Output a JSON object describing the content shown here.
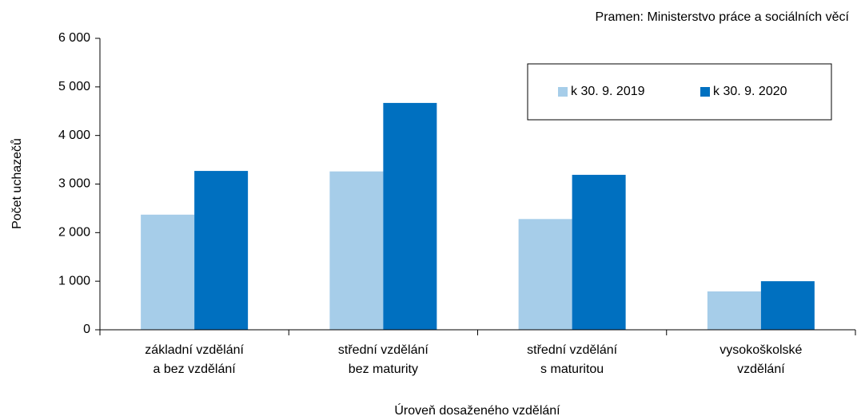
{
  "chart_data": {
    "type": "bar",
    "source": "Pramen: Ministerstvo práce a sociálních věcí",
    "x_label": "Úroveň dosaženého vzdělání",
    "y_label": "Počet uchazečů",
    "categories": [
      [
        "základní vzdělání",
        "a bez vzdělání"
      ],
      [
        "střední vzdělání",
        "bez maturity"
      ],
      [
        "střední vzdělání",
        "s maturitou"
      ],
      [
        "vysokoškolské",
        "vzdělání"
      ]
    ],
    "series": [
      {
        "name": "k 30. 9. 2019",
        "color": "#a6cde9",
        "values": [
          2370,
          3260,
          2280,
          790
        ]
      },
      {
        "name": "k 30. 9. 2020",
        "color": "#0070c0",
        "values": [
          3270,
          4670,
          3190,
          1000
        ]
      }
    ],
    "ylim": [
      0,
      6000
    ],
    "yticks": [
      0,
      {
        "value": 1000,
        "label": "1 000"
      },
      {
        "value": 2000,
        "label": "2 000"
      },
      {
        "value": 3000,
        "label": "3 000"
      },
      {
        "value": 4000,
        "label": "4 000"
      },
      {
        "value": 5000,
        "label": "5 000"
      },
      {
        "value": 6000,
        "label": "6 000"
      }
    ],
    "grid": false,
    "legend": "top-right"
  }
}
